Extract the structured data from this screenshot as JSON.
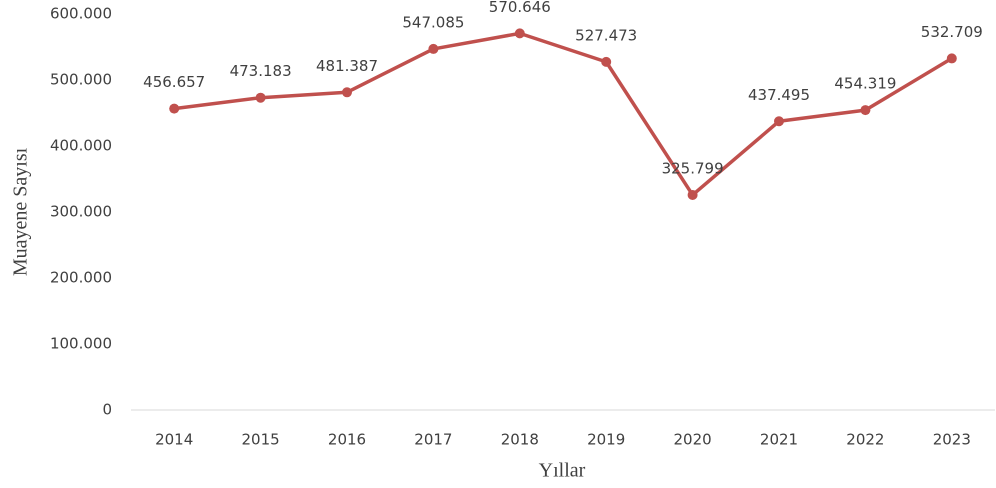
{
  "chart_data": {
    "type": "line",
    "x_label": "Yıllar",
    "y_label": "Muayene Sayısı",
    "categories": [
      "2014",
      "2015",
      "2016",
      "2017",
      "2018",
      "2019",
      "2020",
      "2021",
      "2022",
      "2023"
    ],
    "series": [
      {
        "name": "Muayene Sayısı",
        "color": "#c0504d",
        "values": [
          456657,
          473183,
          481387,
          547085,
          570646,
          527473,
          325799,
          437495,
          454319,
          532709
        ],
        "value_labels": [
          "456.657",
          "473.183",
          "481.387",
          "547.085",
          "570.646",
          "527.473",
          "325.799",
          "437.495",
          "454.319",
          "532.709"
        ]
      }
    ],
    "ylim": [
      0,
      600000
    ],
    "yticks": [
      0,
      {
        "value": 100000,
        "label": "100.000"
      },
      {
        "value": 200000,
        "label": "200.000"
      },
      {
        "value": 300000,
        "label": "300.000"
      },
      {
        "value": 400000,
        "label": "400.000"
      },
      {
        "value": 500000,
        "label": "500.000"
      },
      {
        "value": 600000,
        "label": "600.000"
      }
    ],
    "grid": false
  }
}
